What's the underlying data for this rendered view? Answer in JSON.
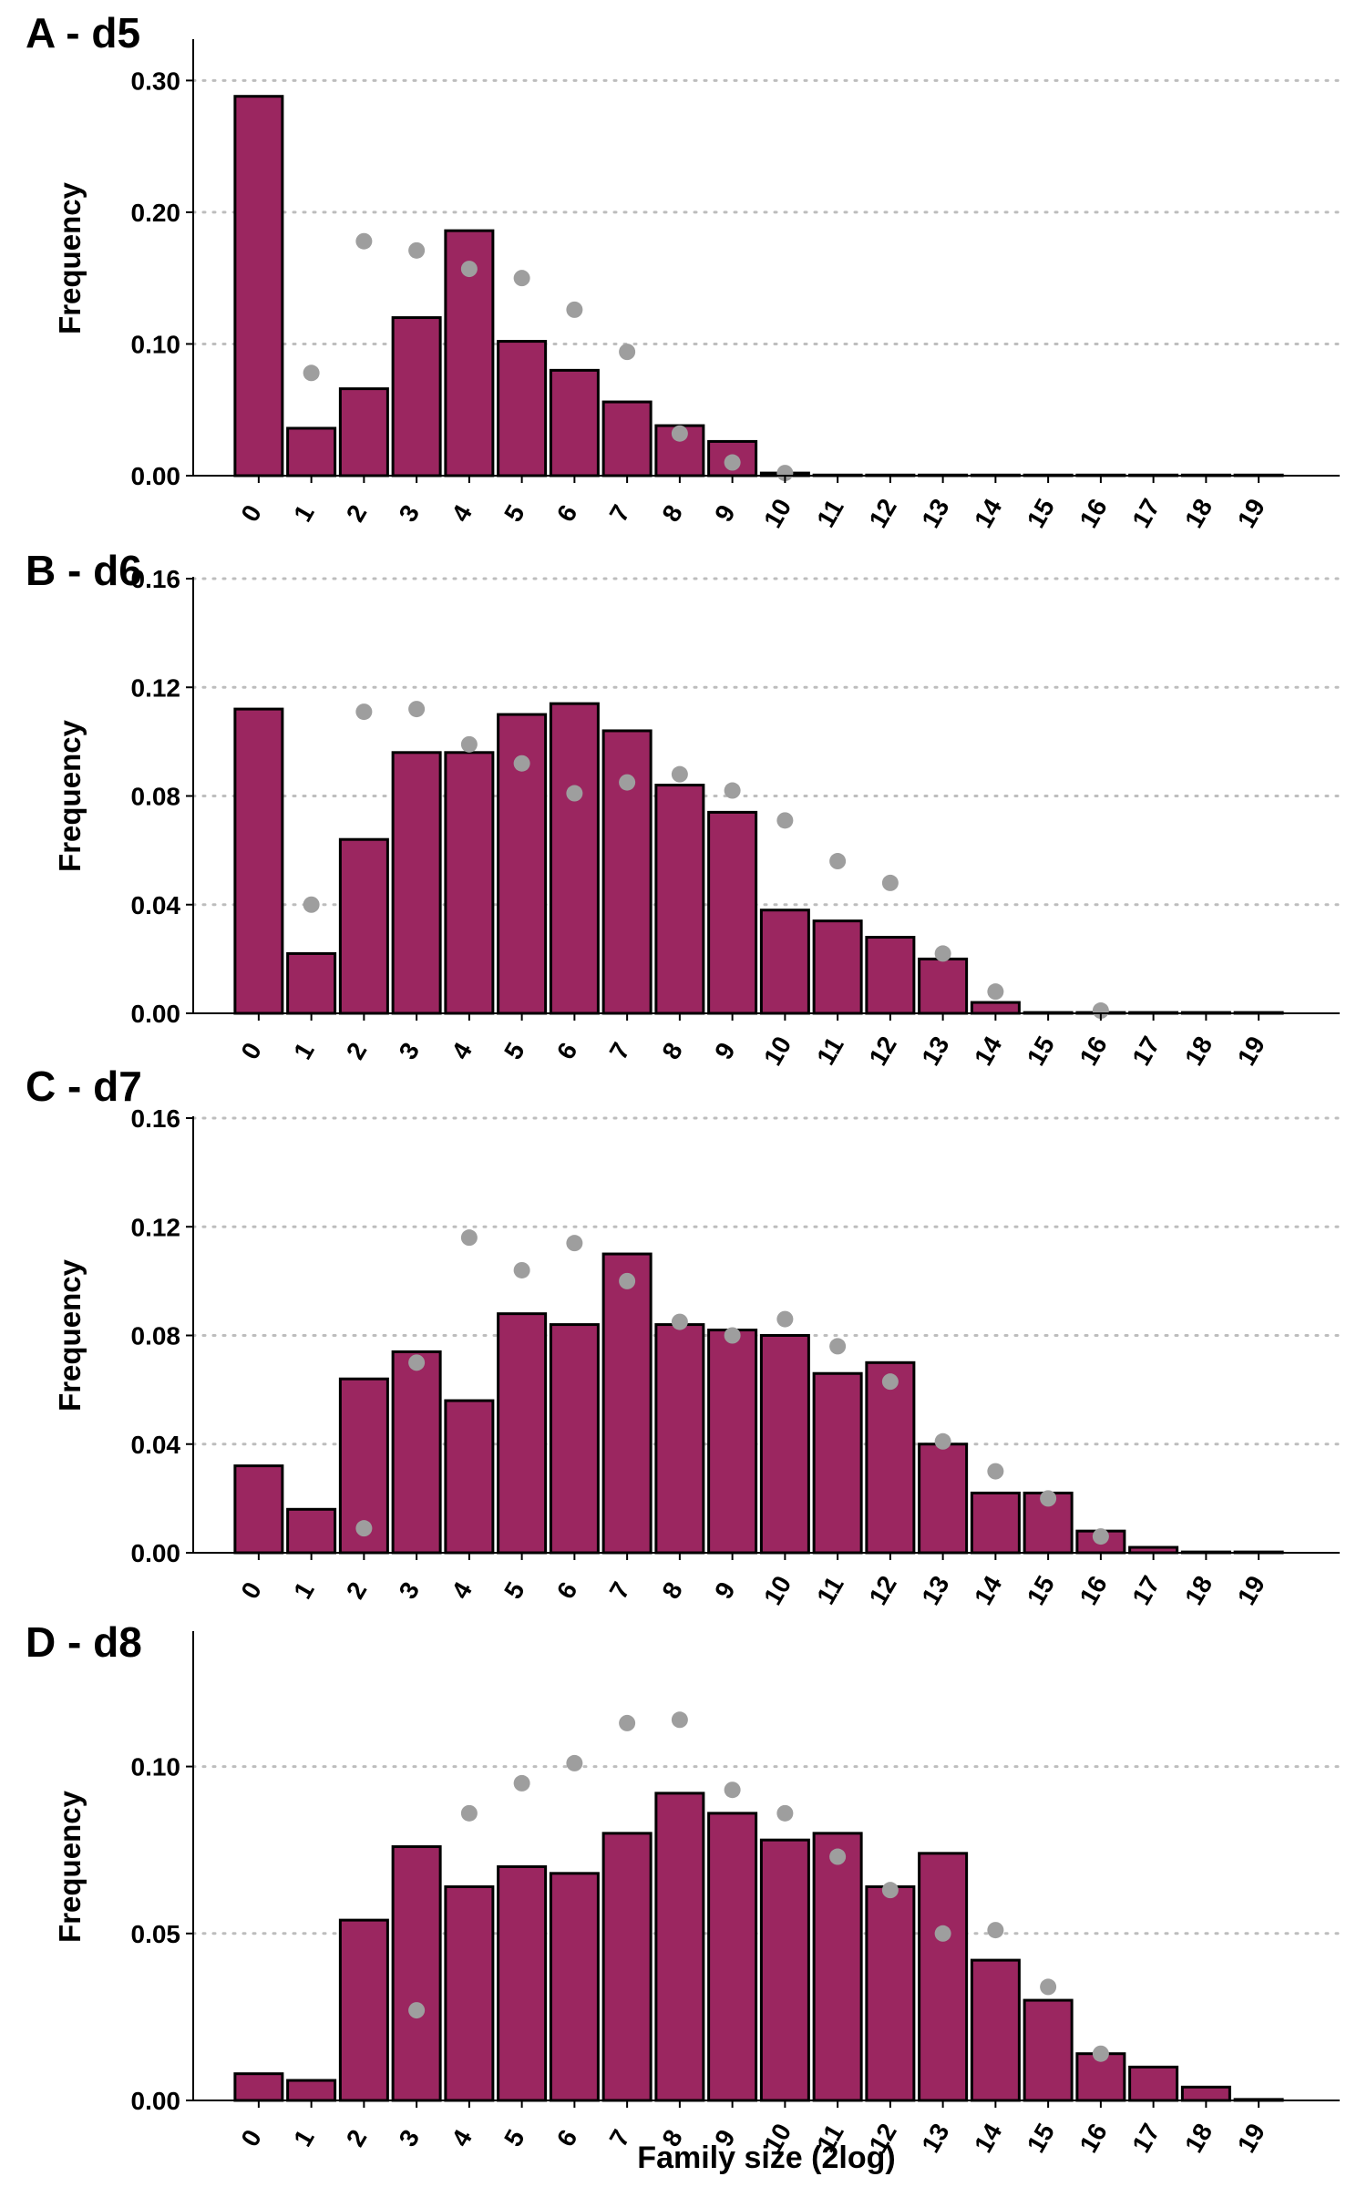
{
  "chart_data": [
    {
      "type": "bar",
      "panel_label": "A - d5",
      "ylabel": "Frequency",
      "xlabel": "",
      "ylim": [
        0,
        0.33
      ],
      "yticks": [
        "0.00",
        "0.10",
        "0.20",
        "0.30"
      ],
      "categories": [
        "0",
        "1",
        "2",
        "3",
        "4",
        "5",
        "6",
        "7",
        "8",
        "9",
        "10",
        "11",
        "12",
        "13",
        "14",
        "15",
        "16",
        "17",
        "18",
        "19"
      ],
      "series": [
        {
          "values": [
            0.288,
            0.036,
            0.066,
            0.12,
            0.186,
            0.102,
            0.08,
            0.056,
            0.038,
            0.026,
            0.002,
            0.0005,
            0.0005,
            0.0005,
            0.0005,
            0.0005,
            0.0005,
            0.0005,
            0.0005,
            0.0005
          ]
        },
        {
          "values": [
            null,
            0.078,
            0.178,
            0.171,
            0.157,
            0.15,
            0.126,
            0.094,
            0.032,
            0.01,
            0.002,
            null,
            null,
            null,
            null,
            null,
            null,
            null,
            null,
            null
          ]
        }
      ]
    },
    {
      "type": "bar",
      "panel_label": "B - d6",
      "ylabel": "Frequency",
      "xlabel": "",
      "ylim": [
        0,
        0.16
      ],
      "yticks": [
        "0.00",
        "0.04",
        "0.08",
        "0.12",
        "0.16"
      ],
      "categories": [
        "0",
        "1",
        "2",
        "3",
        "4",
        "5",
        "6",
        "7",
        "8",
        "9",
        "10",
        "11",
        "12",
        "13",
        "14",
        "15",
        "16",
        "17",
        "18",
        "19"
      ],
      "series": [
        {
          "values": [
            0.112,
            0.022,
            0.064,
            0.096,
            0.096,
            0.11,
            0.114,
            0.104,
            0.084,
            0.074,
            0.038,
            0.034,
            0.028,
            0.02,
            0.004,
            0.0003,
            0.0003,
            0.0003,
            0.0003,
            0.0003
          ]
        },
        {
          "values": [
            null,
            0.04,
            0.111,
            0.112,
            0.099,
            0.092,
            0.081,
            0.085,
            0.088,
            0.082,
            0.071,
            0.056,
            0.048,
            0.022,
            0.008,
            null,
            0.001,
            null,
            null,
            null
          ]
        }
      ]
    },
    {
      "type": "bar",
      "panel_label": "C - d7",
      "ylabel": "Frequency",
      "xlabel": "",
      "ylim": [
        0,
        0.16
      ],
      "yticks": [
        "0.00",
        "0.04",
        "0.08",
        "0.12",
        "0.16"
      ],
      "categories": [
        "0",
        "1",
        "2",
        "3",
        "4",
        "5",
        "6",
        "7",
        "8",
        "9",
        "10",
        "11",
        "12",
        "13",
        "14",
        "15",
        "16",
        "17",
        "18",
        "19"
      ],
      "series": [
        {
          "values": [
            0.032,
            0.016,
            0.064,
            0.074,
            0.056,
            0.088,
            0.084,
            0.11,
            0.084,
            0.082,
            0.08,
            0.066,
            0.07,
            0.04,
            0.022,
            0.022,
            0.008,
            0.002,
            0.0003,
            0.0003
          ]
        },
        {
          "values": [
            null,
            null,
            0.009,
            0.07,
            0.116,
            0.104,
            0.114,
            0.1,
            0.085,
            0.08,
            0.086,
            0.076,
            0.063,
            0.041,
            0.03,
            0.02,
            0.006,
            null,
            null,
            null
          ]
        }
      ]
    },
    {
      "type": "bar",
      "panel_label": "D - d8",
      "ylabel": "Frequency",
      "xlabel": "Family size (2log)",
      "ylim": [
        0,
        0.14
      ],
      "yticks": [
        "0.00",
        "0.05",
        "0.10"
      ],
      "categories": [
        "0",
        "1",
        "2",
        "3",
        "4",
        "5",
        "6",
        "7",
        "8",
        "9",
        "10",
        "11",
        "12",
        "13",
        "14",
        "15",
        "16",
        "17",
        "18",
        "19"
      ],
      "series": [
        {
          "values": [
            0.008,
            0.006,
            0.054,
            0.076,
            0.064,
            0.07,
            0.068,
            0.08,
            0.092,
            0.086,
            0.078,
            0.08,
            0.064,
            0.074,
            0.042,
            0.03,
            0.014,
            0.01,
            0.004,
            0.0003
          ]
        },
        {
          "values": [
            null,
            null,
            null,
            0.027,
            0.086,
            0.095,
            0.101,
            0.113,
            0.114,
            0.093,
            0.086,
            0.073,
            0.063,
            0.05,
            0.051,
            0.034,
            0.014,
            null,
            null,
            null
          ]
        }
      ]
    }
  ]
}
